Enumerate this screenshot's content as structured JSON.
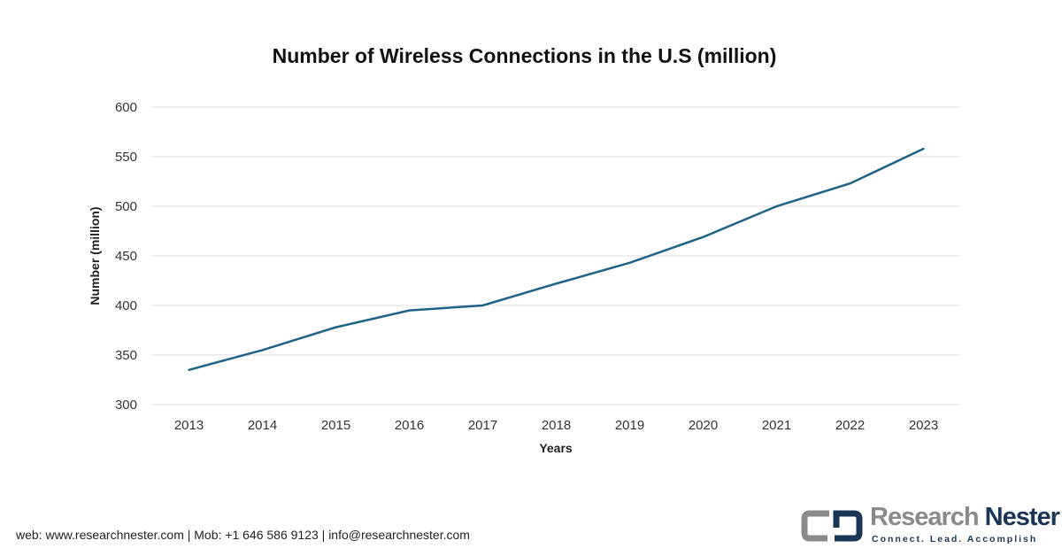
{
  "chart_data": {
    "type": "line",
    "title": "Number of Wireless Connections in the U.S (million)",
    "xlabel": "Years",
    "ylabel": "Number (million)",
    "categories": [
      "2013",
      "2014",
      "2015",
      "2016",
      "2017",
      "2018",
      "2019",
      "2020",
      "2021",
      "2022",
      "2023"
    ],
    "values": [
      335,
      355,
      378,
      395,
      400,
      422,
      443,
      469,
      500,
      523,
      558
    ],
    "ylim": [
      300,
      600
    ],
    "yticks": [
      300,
      350,
      400,
      450,
      500,
      550,
      600
    ],
    "grid": true,
    "line_color": "#1f6384"
  },
  "footer": {
    "text": "web: www.researchnester.com | Mob: +1 646 586 9123 | info@researchnester.com"
  },
  "logo": {
    "name1": "Research",
    "name2": "Nester",
    "tagline": "Connect. Lead. Accomplish"
  }
}
